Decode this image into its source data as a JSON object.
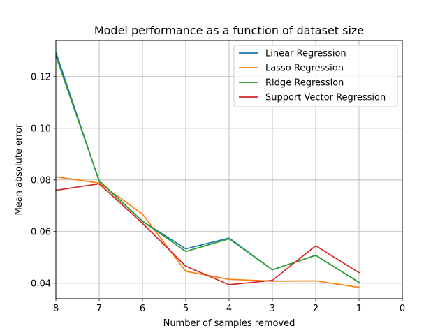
{
  "chart_data": {
    "type": "line",
    "title": "Model performance as a function of dataset size",
    "xlabel": "Number of samples removed",
    "ylabel": "Mean absolute error",
    "xlim": [
      8,
      0
    ],
    "ylim": [
      0.034,
      0.134
    ],
    "x_ticks": [
      8,
      7,
      6,
      5,
      4,
      3,
      2,
      1,
      0
    ],
    "y_ticks": [
      0.04,
      0.06,
      0.08,
      0.1,
      0.12
    ],
    "y_tick_labels": [
      "0.04",
      "0.06",
      "0.08",
      "0.10",
      "0.12"
    ],
    "grid": true,
    "legend_position": "top-right",
    "x": [
      8,
      7,
      6,
      5,
      4,
      3,
      2,
      1
    ],
    "series": [
      {
        "name": "Linear Regression",
        "color": "#1f77b4",
        "values": [
          0.1295,
          0.0795,
          0.064,
          0.0533,
          0.0575,
          0.0452,
          0.0508,
          0.0403
        ]
      },
      {
        "name": "Lasso Regression",
        "color": "#ff7f0e",
        "values": [
          0.0812,
          0.0788,
          0.0668,
          0.0446,
          0.0415,
          0.0408,
          0.0409,
          0.0384
        ]
      },
      {
        "name": "Ridge Regression",
        "color": "#2ca02c",
        "values": [
          0.128,
          0.0797,
          0.064,
          0.0523,
          0.0572,
          0.0452,
          0.0508,
          0.0403
        ]
      },
      {
        "name": "Support Vector Regression",
        "color": "#d62728",
        "values": [
          0.076,
          0.0785,
          0.0632,
          0.0466,
          0.0394,
          0.0411,
          0.0545,
          0.0441
        ]
      }
    ]
  }
}
